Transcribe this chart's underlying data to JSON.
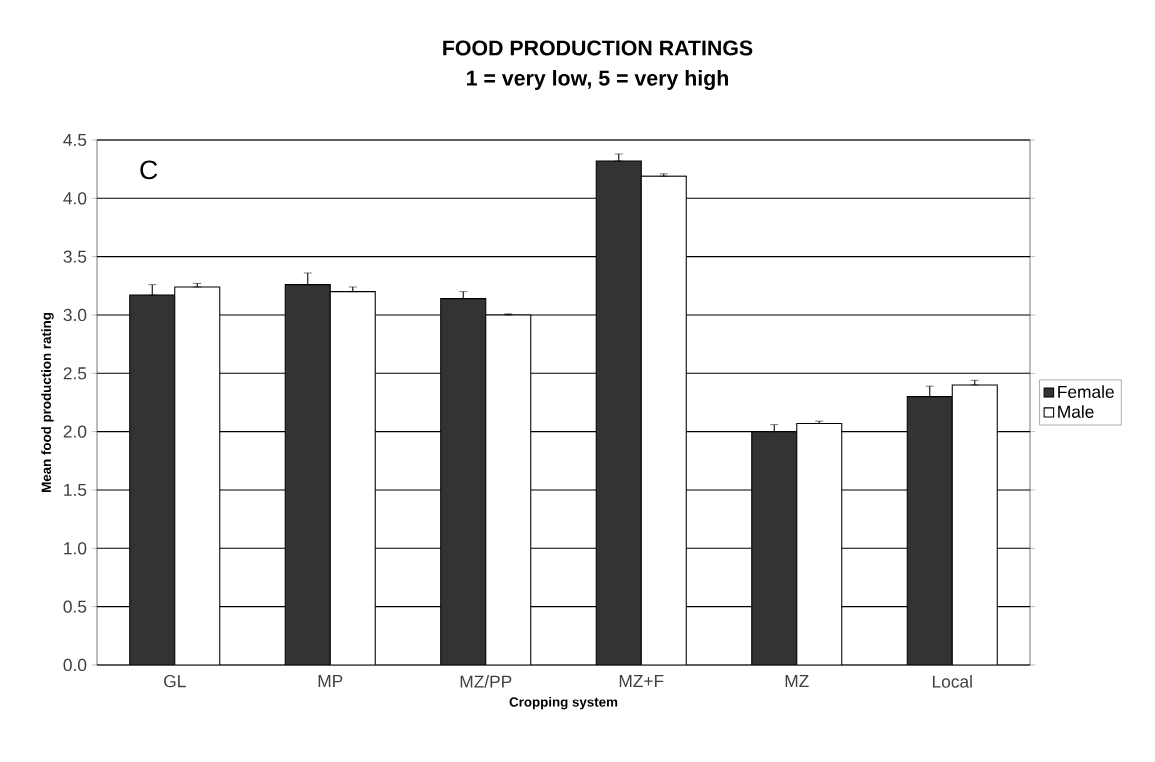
{
  "chart_data": {
    "type": "bar",
    "title": "FOOD PRODUCTION RATINGS",
    "subtitle": "1 = very low, 5 = very high",
    "xlabel": "Cropping system",
    "ylabel": "Mean food production rating",
    "categories": [
      "GL",
      "MP",
      "MZ/PP",
      "MZ+F",
      "MZ",
      "Local"
    ],
    "series": [
      {
        "name": "Female",
        "color": "#333333",
        "values": [
          3.17,
          3.26,
          3.14,
          4.32,
          2.0,
          2.3
        ],
        "errors": [
          [
            3.17,
            3.26
          ],
          [
            3.26,
            3.36
          ],
          [
            3.14,
            3.2
          ],
          [
            4.32,
            4.38
          ],
          [
            2.0,
            2.06
          ],
          [
            2.3,
            2.39
          ]
        ]
      },
      {
        "name": "Male",
        "color": "#ffffff",
        "values": [
          3.24,
          3.2,
          3.0,
          4.19,
          2.07,
          2.4
        ],
        "errors": [
          [
            3.24,
            3.27
          ],
          [
            3.2,
            3.24
          ],
          [
            3.0,
            3.01
          ],
          [
            4.19,
            4.21
          ],
          [
            2.07,
            2.09
          ],
          [
            2.4,
            2.44
          ]
        ]
      }
    ],
    "ylim": [
      0,
      4.5
    ],
    "yticks": [
      {
        "value": 0,
        "label": "0.0"
      },
      {
        "value": 0.5,
        "label": "0.5"
      },
      {
        "value": 1,
        "label": "1.0"
      },
      {
        "value": 1.5,
        "label": "1.5"
      },
      {
        "value": 2,
        "label": "2.0"
      },
      {
        "value": 2.5,
        "label": "2.5"
      },
      {
        "value": 3,
        "label": "3.0"
      },
      {
        "value": 3.5,
        "label": "3.5"
      },
      {
        "value": 4,
        "label": "4.0"
      },
      {
        "value": 4.5,
        "label": "4.5"
      }
    ],
    "grid": "y",
    "legend": "right",
    "annotations": [
      "C"
    ]
  }
}
